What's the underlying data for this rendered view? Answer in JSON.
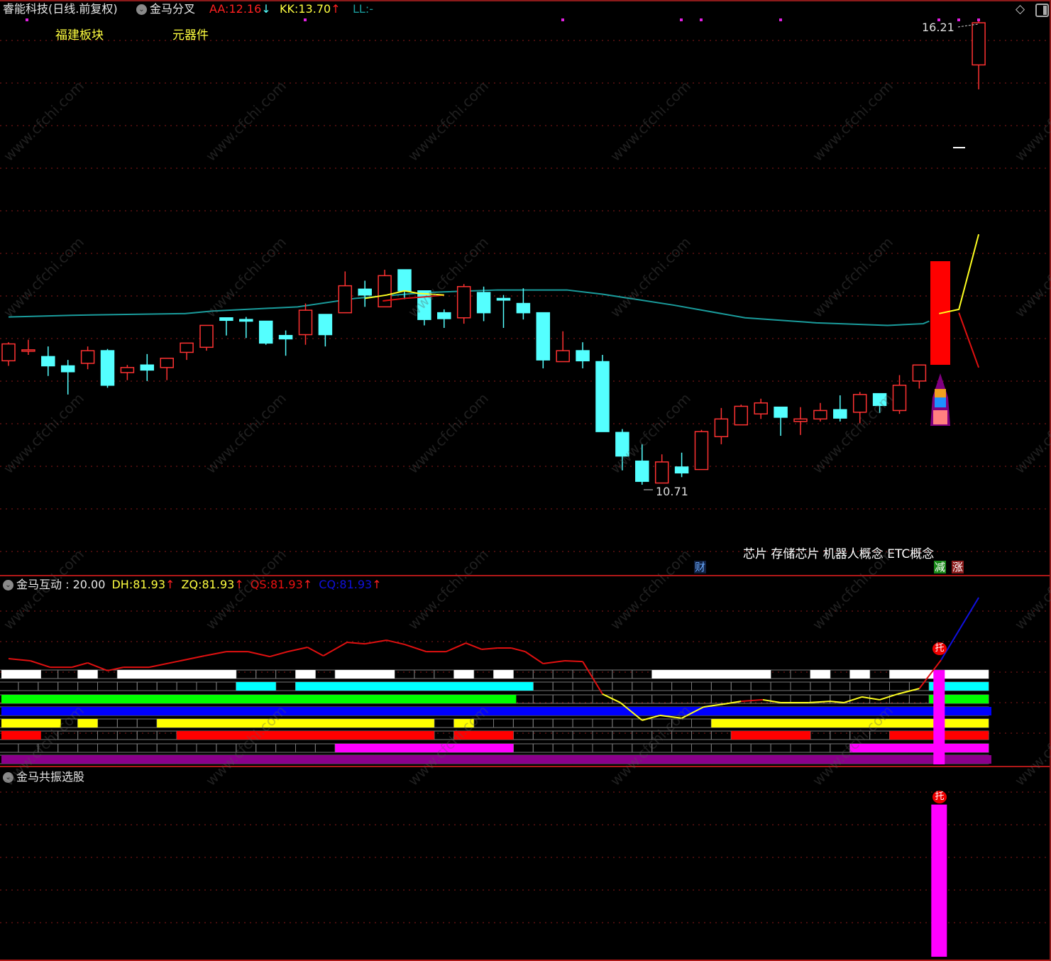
{
  "header": {
    "stock_name": "睿能科技(日线.前复权)",
    "indicator_name": "金马分叉",
    "aa_label": "AA:",
    "aa_value": "12.16",
    "aa_arrow": "↓",
    "kk_label": "KK:",
    "kk_value": "13.70",
    "kk_arrow": "↑",
    "ll_label": "LL:",
    "ll_value": "-",
    "sector_1": "福建板块",
    "sector_2": "元器件",
    "diamond_icon": "diamond-icon",
    "panel_icon": "panel-toggle-icon"
  },
  "main_panel": {
    "high_label": "16.21",
    "low_label": "10.71",
    "concepts": "芯片 存储芯片 机器人概念 ETC概念",
    "finance_tag": "财",
    "reduce_tag": "减",
    "rise_tag": "涨"
  },
  "middle_panel": {
    "title": "金马互动",
    "value_text": ": 20.00",
    "dh_label": "DH:",
    "dh_value": "81.93",
    "zq_label": "ZQ:",
    "zq_value": "81.93",
    "qs_label": "QS:",
    "qs_value": "81.93",
    "cq_label": "CQ:",
    "cq_value": "81.93",
    "arrow": "↑",
    "signal_marker": "托"
  },
  "bottom_panel": {
    "title": "金马共振选股",
    "signal_marker": "托"
  },
  "watermark": "www.cfchi.com",
  "colors": {
    "background": "#000000",
    "up": "#ff3232",
    "down": "#54ffff",
    "ma": "#1a9c9c",
    "grid": "#8b1a1a",
    "signal": "#ff00ff"
  },
  "chart_data": {
    "type": "candlestick",
    "price_axis_range": [
      9.64,
      16.46
    ],
    "grid": true,
    "candles_ohlc": [
      [
        12.18,
        12.4,
        12.12,
        12.38
      ],
      [
        12.3,
        12.43,
        12.25,
        12.31
      ],
      [
        12.23,
        12.35,
        12.0,
        12.12
      ],
      [
        12.12,
        12.19,
        11.78,
        12.05
      ],
      [
        12.15,
        12.35,
        12.08,
        12.3
      ],
      [
        12.3,
        12.32,
        11.86,
        11.89
      ],
      [
        12.04,
        12.13,
        11.95,
        12.1
      ],
      [
        12.13,
        12.26,
        11.94,
        12.07
      ],
      [
        12.1,
        12.21,
        11.95,
        12.21
      ],
      [
        12.28,
        12.39,
        12.19,
        12.39
      ],
      [
        12.34,
        12.6,
        12.3,
        12.6
      ],
      [
        12.69,
        12.69,
        12.48,
        12.66
      ],
      [
        12.67,
        12.7,
        12.45,
        12.65
      ],
      [
        12.65,
        12.65,
        12.37,
        12.39
      ],
      [
        12.48,
        12.54,
        12.24,
        12.44
      ],
      [
        12.49,
        12.86,
        12.37,
        12.78
      ],
      [
        12.73,
        12.73,
        12.35,
        12.49
      ],
      [
        12.75,
        13.24,
        12.75,
        13.07
      ],
      [
        13.03,
        13.13,
        12.82,
        12.96
      ],
      [
        12.82,
        13.26,
        12.82,
        13.19
      ],
      [
        13.26,
        13.26,
        12.91,
        13.01
      ],
      [
        13.01,
        13.01,
        12.6,
        12.67
      ],
      [
        12.75,
        12.79,
        12.57,
        12.68
      ],
      [
        12.69,
        13.09,
        12.62,
        13.06
      ],
      [
        12.99,
        13.06,
        12.65,
        12.75
      ],
      [
        12.92,
        12.96,
        12.57,
        12.9
      ],
      [
        12.86,
        13.04,
        12.67,
        12.75
      ],
      [
        12.75,
        12.75,
        12.09,
        12.19
      ],
      [
        12.17,
        12.53,
        12.17,
        12.3
      ],
      [
        12.3,
        12.4,
        12.09,
        12.18
      ],
      [
        12.17,
        12.25,
        11.34,
        11.34
      ],
      [
        11.33,
        11.37,
        10.88,
        11.05
      ],
      [
        10.99,
        11.19,
        10.71,
        10.75
      ],
      [
        10.73,
        11.07,
        10.73,
        10.98
      ],
      [
        10.92,
        11.09,
        10.8,
        10.85
      ],
      [
        10.89,
        11.36,
        10.89,
        11.34
      ],
      [
        11.28,
        11.62,
        11.19,
        11.49
      ],
      [
        11.42,
        11.66,
        11.42,
        11.64
      ],
      [
        11.55,
        11.73,
        11.49,
        11.68
      ],
      [
        11.63,
        11.63,
        11.29,
        11.51
      ],
      [
        11.46,
        11.63,
        11.3,
        11.49
      ],
      [
        11.49,
        11.68,
        11.46,
        11.59
      ],
      [
        11.6,
        11.77,
        11.46,
        11.5
      ],
      [
        11.57,
        11.81,
        11.44,
        11.78
      ],
      [
        11.79,
        11.79,
        11.56,
        11.65
      ],
      [
        11.59,
        12.01,
        11.55,
        11.89
      ],
      [
        11.94,
        12.13,
        11.85,
        12.13
      ],
      null,
      null,
      [
        15.69,
        16.21,
        15.4,
        16.19
      ]
    ],
    "ohlc_order": [
      "open",
      "high",
      "low",
      "close"
    ],
    "ma_line": [
      [
        0,
        12.7
      ],
      [
        3.2,
        12.72
      ],
      [
        8.9,
        12.74
      ],
      [
        10.3,
        12.77
      ],
      [
        14.6,
        12.82
      ],
      [
        17.5,
        12.92
      ],
      [
        21.1,
        12.99
      ],
      [
        24.7,
        13.02
      ],
      [
        28.2,
        13.02
      ],
      [
        30,
        12.97
      ],
      [
        33.6,
        12.84
      ],
      [
        37.2,
        12.69
      ],
      [
        40.8,
        12.63
      ],
      [
        44.4,
        12.6
      ],
      [
        46.2,
        12.62
      ],
      [
        46.5,
        12.65
      ]
    ],
    "fork_yellow_left": [
      [
        18,
        12.92
      ],
      [
        19.1,
        12.96
      ],
      [
        20,
        13.01
      ],
      [
        20.7,
        12.98
      ],
      [
        22,
        12.96
      ]
    ],
    "fork_red_left": [
      [
        18.9,
        12.89
      ],
      [
        20,
        12.92
      ],
      [
        21.1,
        12.94
      ],
      [
        22,
        12.96
      ]
    ],
    "fork_yellow_right": [
      [
        47,
        12.74
      ],
      [
        48,
        12.79
      ],
      [
        49,
        13.68
      ]
    ],
    "fork_red_right": [
      [
        48,
        12.75
      ],
      [
        49,
        12.1
      ]
    ],
    "interaction_line_level_pct": [
      [
        0,
        56.7
      ],
      [
        1.1,
        55.6
      ],
      [
        2.1,
        52.2
      ],
      [
        3.2,
        52.2
      ],
      [
        4,
        54.5
      ],
      [
        5,
        50.4
      ],
      [
        5.8,
        52.2
      ],
      [
        7.1,
        52.2
      ],
      [
        8.5,
        55.2
      ],
      [
        9.9,
        58.2
      ],
      [
        11,
        60.4
      ],
      [
        12.1,
        60.4
      ],
      [
        13.2,
        57.8
      ],
      [
        14.1,
        60.4
      ],
      [
        15.1,
        62.7
      ],
      [
        15.9,
        58.2
      ],
      [
        17.1,
        65.3
      ],
      [
        18,
        64.5
      ],
      [
        19.1,
        66.4
      ],
      [
        20,
        64.2
      ],
      [
        21.1,
        60.4
      ],
      [
        22.1,
        60.4
      ],
      [
        23.1,
        64.9
      ],
      [
        23.9,
        61.6
      ],
      [
        24.7,
        62.3
      ],
      [
        25.4,
        62.3
      ],
      [
        26.1,
        60.4
      ],
      [
        27,
        54.1
      ],
      [
        28.1,
        55.6
      ],
      [
        29,
        55.2
      ],
      [
        30,
        38.1
      ],
      [
        30.9,
        33.6
      ],
      [
        32,
        24.3
      ],
      [
        32.9,
        26.9
      ],
      [
        34,
        25.4
      ],
      [
        35.1,
        31.3
      ],
      [
        36.1,
        32.8
      ],
      [
        37,
        34.3
      ],
      [
        38.1,
        35.1
      ],
      [
        39,
        33.6
      ],
      [
        40.4,
        33.6
      ],
      [
        41.5,
        34.3
      ],
      [
        42.2,
        33.6
      ],
      [
        43.1,
        36.6
      ],
      [
        44,
        35.1
      ],
      [
        44.9,
        38.1
      ],
      [
        46,
        41.0
      ],
      [
        47.1,
        56.0
      ],
      [
        49,
        88.8
      ]
    ],
    "signal_stripes": [
      {
        "color": "#ffffff",
        "ranges": [
          [
            0,
            1
          ],
          [
            4,
            4
          ],
          [
            6,
            11
          ],
          [
            15,
            15
          ],
          [
            17,
            19
          ],
          [
            23,
            23
          ],
          [
            25,
            25
          ],
          [
            33,
            38
          ],
          [
            41,
            41
          ],
          [
            43,
            43
          ],
          [
            45,
            49
          ]
        ]
      },
      {
        "color": "#00ffff",
        "ranges": [
          [
            12,
            13
          ],
          [
            15,
            26
          ],
          [
            47,
            49
          ]
        ]
      },
      {
        "color": "#00ff00",
        "ranges": [
          [
            0,
            25
          ],
          [
            47,
            49
          ]
        ]
      },
      {
        "color": "#0000ff",
        "ranges": [
          [
            0,
            49
          ]
        ]
      },
      {
        "color": "#ffff00",
        "ranges": [
          [
            0,
            2
          ],
          [
            4,
            4
          ],
          [
            8,
            21
          ],
          [
            23,
            23
          ],
          [
            36,
            49
          ]
        ]
      },
      {
        "color": "#ff0000",
        "ranges": [
          [
            0,
            1
          ],
          [
            9,
            21
          ],
          [
            23,
            25
          ],
          [
            37,
            40
          ],
          [
            45,
            49
          ]
        ]
      },
      {
        "color": "#ff00ff",
        "ranges": [
          [
            17,
            25
          ],
          [
            43,
            49
          ]
        ]
      },
      {
        "color": "#8b008b",
        "ranges": [
          [
            0,
            49
          ]
        ]
      }
    ],
    "signal_day": 47,
    "resonance_bar_level_pct": 80
  }
}
